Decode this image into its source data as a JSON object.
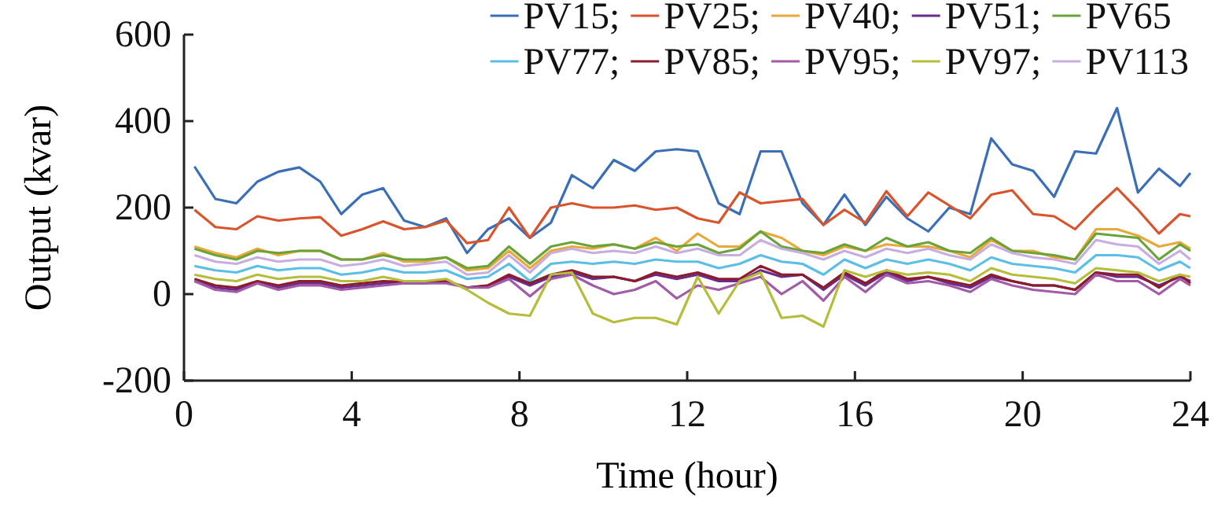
{
  "chart_data": {
    "type": "line",
    "xlabel": "Time (hour)",
    "ylabel": "Output (kvar)",
    "xlim": [
      0,
      24
    ],
    "xticks": [
      0,
      4,
      8,
      12,
      16,
      20,
      24
    ],
    "ylim": [
      -200,
      600
    ],
    "yticks": [
      -200,
      0,
      200,
      400,
      600
    ],
    "legend": "top right",
    "grid": false,
    "x": [
      0.25,
      0.75,
      1.25,
      1.75,
      2.25,
      2.75,
      3.25,
      3.75,
      4.25,
      4.75,
      5.25,
      5.75,
      6.25,
      6.75,
      7.25,
      7.75,
      8.25,
      8.75,
      9.25,
      9.75,
      10.25,
      10.75,
      11.25,
      11.75,
      12.25,
      12.75,
      13.25,
      13.75,
      14.25,
      14.75,
      15.25,
      15.75,
      16.25,
      16.75,
      17.25,
      17.75,
      18.25,
      18.75,
      19.25,
      19.75,
      20.25,
      20.75,
      21.25,
      21.75,
      22.25,
      22.75,
      23.25,
      23.75,
      24
    ],
    "series": [
      {
        "name": "PV15;",
        "color": "#3a6fb8",
        "values": [
          295,
          220,
          210,
          260,
          283,
          293,
          260,
          185,
          230,
          245,
          170,
          155,
          175,
          95,
          150,
          175,
          130,
          165,
          275,
          245,
          310,
          285,
          330,
          335,
          330,
          210,
          185,
          330,
          330,
          210,
          160,
          230,
          160,
          225,
          175,
          145,
          200,
          185,
          360,
          300,
          285,
          225,
          330,
          325,
          430,
          235,
          290,
          250,
          280
        ]
      },
      {
        "name": "PV25;",
        "color": "#d9532b",
        "values": [
          195,
          155,
          150,
          180,
          170,
          175,
          178,
          135,
          150,
          168,
          150,
          155,
          170,
          118,
          125,
          200,
          130,
          200,
          210,
          200,
          200,
          205,
          195,
          200,
          175,
          165,
          235,
          210,
          215,
          220,
          160,
          195,
          165,
          238,
          180,
          235,
          205,
          175,
          230,
          240,
          185,
          180,
          150,
          200,
          245,
          195,
          140,
          185,
          180
        ]
      },
      {
        "name": "PV40;",
        "color": "#e8a93a",
        "values": [
          110,
          95,
          85,
          105,
          90,
          100,
          100,
          80,
          80,
          95,
          75,
          75,
          85,
          55,
          60,
          100,
          60,
          100,
          110,
          105,
          115,
          105,
          130,
          100,
          140,
          110,
          110,
          145,
          130,
          100,
          90,
          110,
          100,
          115,
          110,
          110,
          100,
          85,
          125,
          100,
          100,
          85,
          80,
          150,
          150,
          135,
          110,
          120,
          105
        ]
      },
      {
        "name": "PV51;",
        "color": "#6a2c8c",
        "values": [
          30,
          15,
          10,
          25,
          15,
          25,
          25,
          15,
          20,
          25,
          25,
          25,
          30,
          15,
          20,
          40,
          20,
          40,
          50,
          35,
          40,
          30,
          45,
          35,
          45,
          30,
          30,
          55,
          40,
          45,
          10,
          45,
          20,
          50,
          30,
          40,
          25,
          15,
          40,
          30,
          20,
          20,
          10,
          50,
          40,
          40,
          20,
          40,
          30
        ]
      },
      {
        "name": "PV65",
        "color": "#6aa33a",
        "values": [
          105,
          90,
          80,
          100,
          95,
          100,
          100,
          80,
          80,
          90,
          80,
          80,
          85,
          60,
          65,
          110,
          70,
          110,
          120,
          110,
          115,
          105,
          120,
          110,
          115,
          95,
          105,
          145,
          110,
          100,
          95,
          115,
          100,
          130,
          110,
          120,
          100,
          95,
          130,
          100,
          95,
          90,
          80,
          140,
          135,
          130,
          80,
          115,
          100
        ]
      },
      {
        "name": "PV77;",
        "color": "#5bbfe5",
        "values": [
          65,
          55,
          50,
          65,
          55,
          60,
          60,
          45,
          50,
          60,
          50,
          50,
          55,
          35,
          40,
          70,
          30,
          70,
          75,
          70,
          75,
          70,
          80,
          75,
          75,
          60,
          70,
          90,
          75,
          70,
          45,
          80,
          60,
          80,
          70,
          80,
          70,
          55,
          85,
          70,
          65,
          60,
          50,
          90,
          90,
          85,
          55,
          75,
          60
        ]
      },
      {
        "name": "PV85;",
        "color": "#8c1c2c",
        "values": [
          35,
          20,
          15,
          30,
          20,
          30,
          30,
          20,
          25,
          30,
          28,
          28,
          30,
          15,
          20,
          45,
          25,
          45,
          55,
          40,
          40,
          30,
          50,
          40,
          50,
          35,
          35,
          65,
          45,
          45,
          15,
          50,
          25,
          55,
          35,
          40,
          30,
          20,
          45,
          30,
          20,
          20,
          10,
          50,
          45,
          45,
          15,
          45,
          25
        ]
      },
      {
        "name": "PV95;",
        "color": "#a35aa8",
        "values": [
          30,
          10,
          5,
          25,
          10,
          20,
          20,
          10,
          15,
          20,
          25,
          25,
          25,
          15,
          15,
          35,
          -5,
          35,
          45,
          20,
          0,
          10,
          30,
          -10,
          20,
          10,
          25,
          40,
          0,
          30,
          -15,
          40,
          5,
          45,
          25,
          30,
          20,
          5,
          35,
          20,
          10,
          5,
          0,
          45,
          30,
          30,
          0,
          35,
          20
        ]
      },
      {
        "name": "PV97;",
        "color": "#b5bd3a",
        "values": [
          45,
          35,
          30,
          45,
          35,
          40,
          40,
          30,
          30,
          40,
          30,
          30,
          35,
          10,
          -20,
          -45,
          -50,
          45,
          50,
          -45,
          -65,
          -55,
          -55,
          -70,
          40,
          -45,
          30,
          50,
          -55,
          -50,
          -75,
          55,
          40,
          55,
          45,
          50,
          45,
          30,
          60,
          45,
          40,
          35,
          25,
          60,
          55,
          50,
          30,
          45,
          40
        ]
      },
      {
        "name": "PV113",
        "color": "#c8aee0",
        "values": [
          90,
          75,
          70,
          85,
          75,
          80,
          80,
          65,
          70,
          80,
          65,
          70,
          75,
          45,
          50,
          90,
          50,
          95,
          105,
          95,
          100,
          95,
          110,
          95,
          105,
          90,
          90,
          125,
          105,
          95,
          80,
          100,
          85,
          105,
          95,
          105,
          90,
          80,
          115,
          95,
          85,
          80,
          70,
          125,
          115,
          110,
          70,
          100,
          80
        ]
      }
    ]
  }
}
